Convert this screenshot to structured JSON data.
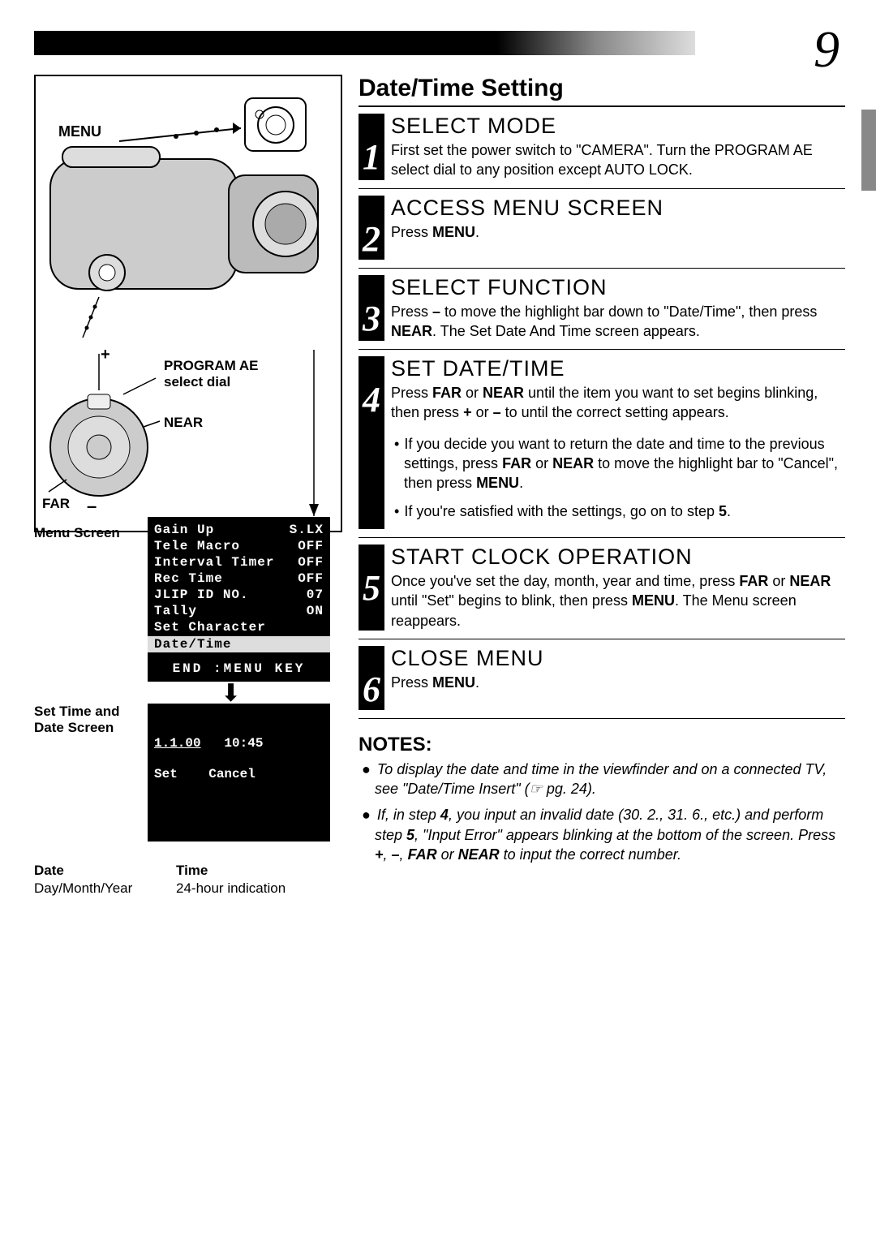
{
  "page_number": "9",
  "section_title": "Date/Time Setting",
  "diagram": {
    "labels": {
      "menu": "MENU",
      "plus": "+",
      "program_ae": "PROGRAM AE",
      "select_dial": "select dial",
      "near": "NEAR",
      "far": "FAR",
      "minus": "–"
    },
    "menu_screen_label": "Menu Screen",
    "menu_items": [
      {
        "l": "Gain Up",
        "r": "S.LX"
      },
      {
        "l": "Tele Macro",
        "r": "OFF"
      },
      {
        "l": "Interval Timer",
        "r": "OFF"
      },
      {
        "l": "Rec Time",
        "r": "OFF"
      },
      {
        "l": "JLIP ID NO.",
        "r": "07"
      },
      {
        "l": "Tally",
        "r": "ON"
      },
      {
        "l": "Set Character",
        "r": ""
      }
    ],
    "menu_highlight": "Date/Time",
    "menu_end": "END :MENU KEY",
    "std_label_1": "Set Time and",
    "std_label_2": "Date Screen",
    "std_date": "1.1.00",
    "std_time": "10:45",
    "std_set": "Set",
    "std_cancel": "Cancel",
    "date_head": "Date",
    "date_sub": "Day/Month/Year",
    "time_head": "Time",
    "time_sub": "24-hour indication"
  },
  "steps": [
    {
      "n": "1",
      "head": "SELECT MODE",
      "body": "First set the power switch to \"CAMERA\". Turn the PROGRAM AE select dial to any position except AUTO LOCK."
    },
    {
      "n": "2",
      "head": "ACCESS MENU SCREEN",
      "body": "Press <b>MENU</b>."
    },
    {
      "n": "3",
      "head": "SELECT FUNCTION",
      "body": "Press <b>–</b> to move the highlight bar down to \"Date/Time\", then press <b>NEAR</b>. The Set Date And Time screen appears."
    },
    {
      "n": "4",
      "head": "SET DATE/TIME",
      "body": "Press <b>FAR</b> or <b>NEAR</b> until the item you want to set begins blinking, then press <b>+</b> or <b>–</b> to until the correct setting appears.",
      "bullets": [
        "If you decide you want to return the date and time to the previous settings, press <b>FAR</b> or <b>NEAR</b> to move the highlight bar to \"Cancel\", then press <b>MENU</b>.",
        "If you're satisfied with the settings, go on to step <b>5</b>."
      ]
    },
    {
      "n": "5",
      "head": "START CLOCK OPERATION",
      "body": "Once you've set the  day, month, year and time, press <b>FAR</b> or <b>NEAR</b> until \"Set\" begins to blink, then press <b>MENU</b>. The Menu screen reappears."
    },
    {
      "n": "6",
      "head": "CLOSE MENU",
      "body": "Press <b>MENU</b>."
    }
  ],
  "notes_head": "NOTES:",
  "notes": [
    "To display the date and time in the viewfinder and on a connected TV, see \"Date/Time Insert\" (☞ pg. 24).",
    "If, in step <b>4</b>, you input an invalid date (30. 2., 31. 6., etc.) and perform step <b>5</b>, \"Input Error\" appears blinking at the bottom of the screen. Press <b>+</b>, <b>–</b>, <b>FAR</b> or <b>NEAR</b> to input the correct number."
  ]
}
